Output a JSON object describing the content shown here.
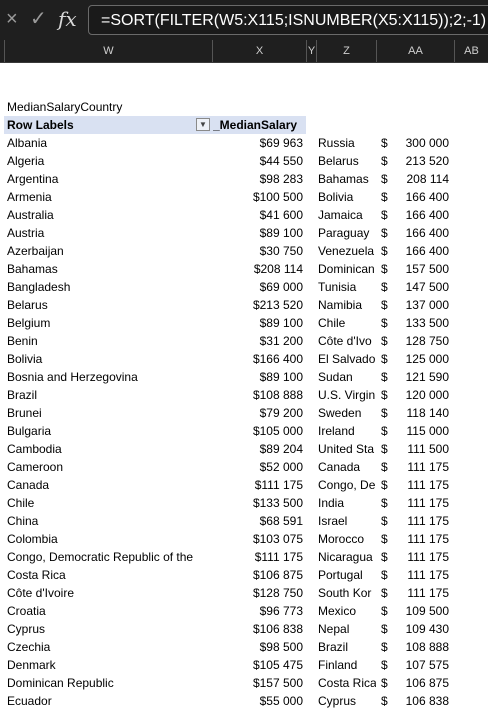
{
  "formula_bar": {
    "cancel_icon": "×",
    "confirm_icon": "✓",
    "fx_label": "fx",
    "formula": "=SORT(FILTER(W5:X115;ISNUMBER(X5:X115));2;-1)"
  },
  "columns": [
    "W",
    "X",
    "Y",
    "Z",
    "AA",
    "AB"
  ],
  "pivot": {
    "title": "MedianSalaryCountry",
    "header_row_labels": "Row Labels",
    "header_value": "_MedianSalary",
    "rows": [
      {
        "country": "Albania",
        "salary": "$69 963"
      },
      {
        "country": "Algeria",
        "salary": "$44 550"
      },
      {
        "country": "Argentina",
        "salary": "$98 283"
      },
      {
        "country": "Armenia",
        "salary": "$100 500"
      },
      {
        "country": "Australia",
        "salary": "$41 600"
      },
      {
        "country": "Austria",
        "salary": "$89 100"
      },
      {
        "country": "Azerbaijan",
        "salary": "$30 750"
      },
      {
        "country": "Bahamas",
        "salary": "$208 114"
      },
      {
        "country": "Bangladesh",
        "salary": "$69 000"
      },
      {
        "country": "Belarus",
        "salary": "$213 520"
      },
      {
        "country": "Belgium",
        "salary": "$89 100"
      },
      {
        "country": "Benin",
        "salary": "$31 200"
      },
      {
        "country": "Bolivia",
        "salary": "$166 400"
      },
      {
        "country": "Bosnia and Herzegovina",
        "salary": "$89 100"
      },
      {
        "country": "Brazil",
        "salary": "$108 888"
      },
      {
        "country": "Brunei",
        "salary": "$79 200"
      },
      {
        "country": "Bulgaria",
        "salary": "$105 000"
      },
      {
        "country": "Cambodia",
        "salary": "$89 204"
      },
      {
        "country": "Cameroon",
        "salary": "$52 000"
      },
      {
        "country": "Canada",
        "salary": "$111 175"
      },
      {
        "country": "Chile",
        "salary": "$133 500"
      },
      {
        "country": "China",
        "salary": "$68 591"
      },
      {
        "country": "Colombia",
        "salary": "$103 075"
      },
      {
        "country": "Congo, Democratic Republic of the",
        "salary": "$111 175"
      },
      {
        "country": "Costa Rica",
        "salary": "$106 875"
      },
      {
        "country": "Côte d'Ivoire",
        "salary": "$128 750"
      },
      {
        "country": "Croatia",
        "salary": "$96 773"
      },
      {
        "country": "Cyprus",
        "salary": "$106 838"
      },
      {
        "country": "Czechia",
        "salary": "$98 500"
      },
      {
        "country": "Denmark",
        "salary": "$105 475"
      },
      {
        "country": "Dominican Republic",
        "salary": "$157 500"
      },
      {
        "country": "Ecuador",
        "salary": "$55 000"
      }
    ]
  },
  "sorted": {
    "currency": "$",
    "rows": [
      {
        "country": "Russia",
        "value": "300 000"
      },
      {
        "country": "Belarus",
        "value": "213 520"
      },
      {
        "country": "Bahamas",
        "value": "208 114"
      },
      {
        "country": "Bolivia",
        "value": "166 400"
      },
      {
        "country": "Jamaica",
        "value": "166 400"
      },
      {
        "country": "Paraguay",
        "value": "166 400"
      },
      {
        "country": "Venezuela",
        "value": "166 400"
      },
      {
        "country": "Dominican",
        "value": "157 500"
      },
      {
        "country": "Tunisia",
        "value": "147 500"
      },
      {
        "country": "Namibia",
        "value": "137 000"
      },
      {
        "country": "Chile",
        "value": "133 500"
      },
      {
        "country": "Côte d'Ivo",
        "value": "128 750"
      },
      {
        "country": "El Salvado",
        "value": "125 000"
      },
      {
        "country": "Sudan",
        "value": "121 590"
      },
      {
        "country": "U.S. Virgin",
        "value": "120 000"
      },
      {
        "country": "Sweden",
        "value": "118 140"
      },
      {
        "country": "Ireland",
        "value": "115 000"
      },
      {
        "country": "United Sta",
        "value": "111 500"
      },
      {
        "country": "Canada",
        "value": "111 175"
      },
      {
        "country": "Congo, De",
        "value": "111 175"
      },
      {
        "country": "India",
        "value": "111 175"
      },
      {
        "country": "Israel",
        "value": "111 175"
      },
      {
        "country": "Morocco",
        "value": "111 175"
      },
      {
        "country": "Nicaragua",
        "value": "111 175"
      },
      {
        "country": "Portugal",
        "value": "111 175"
      },
      {
        "country": "South Kor",
        "value": "111 175"
      },
      {
        "country": "Mexico",
        "value": "109 500"
      },
      {
        "country": "Nepal",
        "value": "109 430"
      },
      {
        "country": "Brazil",
        "value": "108 888"
      },
      {
        "country": "Finland",
        "value": "107 575"
      },
      {
        "country": "Costa Rica",
        "value": "106 875"
      },
      {
        "country": "Cyprus",
        "value": "106 838"
      }
    ]
  }
}
